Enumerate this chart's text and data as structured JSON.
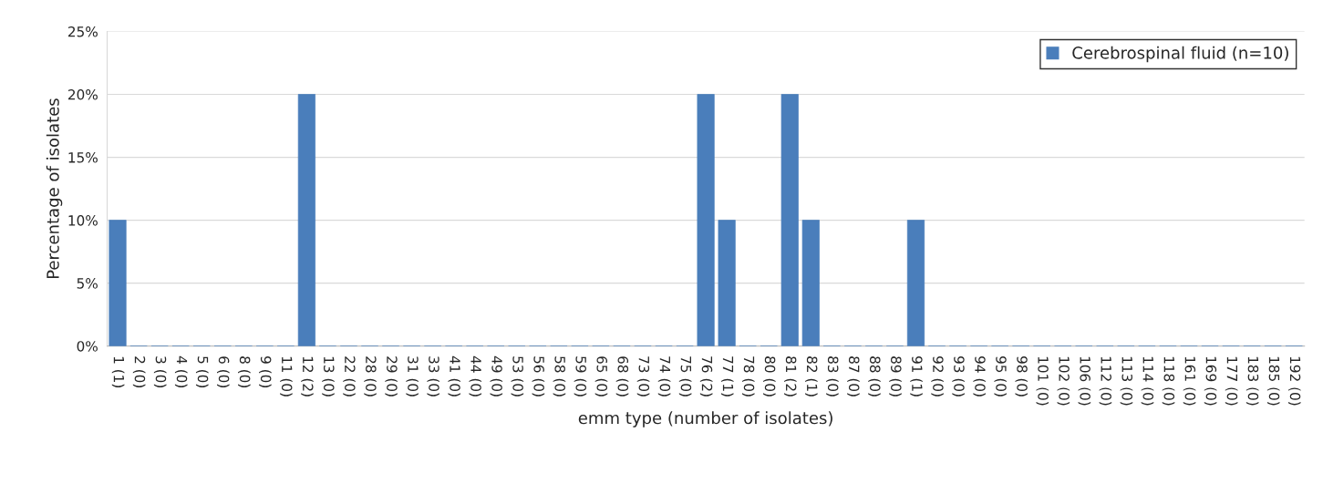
{
  "chart_data": {
    "type": "bar",
    "xlabel": "emm type (number of isolates)",
    "ylabel": "Percentage of isolates",
    "categories": [
      "1 (1)",
      "2 (0)",
      "3 (0)",
      "4 (0)",
      "5 (0)",
      "6 (0)",
      "8 (0)",
      "9 (0)",
      "11 (0)",
      "12 (2)",
      "13 (0)",
      "22 (0)",
      "28 (0)",
      "29 (0)",
      "31 (0)",
      "33 (0)",
      "41 (0)",
      "44 (0)",
      "49 (0)",
      "53 (0)",
      "56 (0)",
      "58 (0)",
      "59 (0)",
      "65 (0)",
      "68 (0)",
      "73 (0)",
      "74 (0)",
      "75 (0)",
      "76 (2)",
      "77 (1)",
      "78 (0)",
      "80 (0)",
      "81 (2)",
      "82 (1)",
      "83 (0)",
      "87 (0)",
      "88 (0)",
      "89 (0)",
      "91 (1)",
      "92 (0)",
      "93 (0)",
      "94 (0)",
      "95 (0)",
      "98 (0)",
      "101 (0)",
      "102 (0)",
      "106 (0)",
      "112 (0)",
      "113 (0)",
      "114 (0)",
      "118 (0)",
      "161 (0)",
      "169 (0)",
      "177 (0)",
      "183 (0)",
      "185 (0)",
      "192 (0)"
    ],
    "series": [
      {
        "name": "Cerebrospinal fluid (n=10)",
        "color": "#4a7ebb",
        "values": [
          10,
          0,
          0,
          0,
          0,
          0,
          0,
          0,
          0,
          20,
          0,
          0,
          0,
          0,
          0,
          0,
          0,
          0,
          0,
          0,
          0,
          0,
          0,
          0,
          0,
          0,
          0,
          0,
          20,
          10,
          0,
          0,
          20,
          10,
          0,
          0,
          0,
          0,
          10,
          0,
          0,
          0,
          0,
          0,
          0,
          0,
          0,
          0,
          0,
          0,
          0,
          0,
          0,
          0,
          0,
          0,
          0
        ]
      }
    ],
    "ylim": [
      0,
      25
    ],
    "yticks": [
      {
        "value": 0,
        "label": "0%"
      },
      {
        "value": 5,
        "label": "5%"
      },
      {
        "value": 10,
        "label": "10%"
      },
      {
        "value": 15,
        "label": "15%"
      },
      {
        "value": 20,
        "label": "20%"
      },
      {
        "value": 25,
        "label": "25%"
      }
    ],
    "grid": "y",
    "legend": "top right"
  }
}
